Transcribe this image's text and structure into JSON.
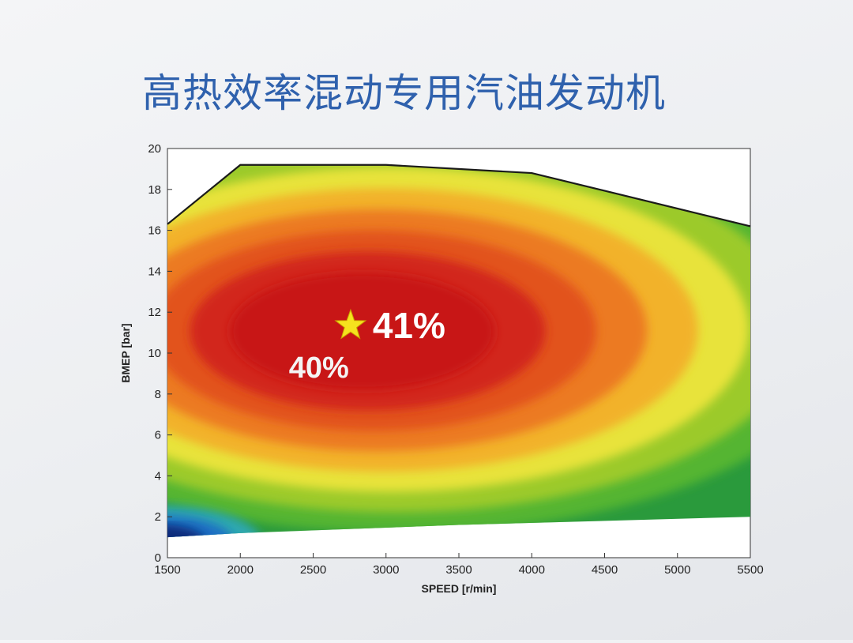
{
  "page": {
    "title": "高热效率混动专用汽油发动机"
  },
  "chart_data": {
    "type": "heatmap",
    "title": "",
    "xlabel": "SPEED [r/min]",
    "ylabel": "BMEP [bar]",
    "xlim": [
      1500,
      5500
    ],
    "ylim": [
      0,
      20
    ],
    "x_ticks": [
      "1500",
      "2000",
      "2500",
      "3000",
      "3500",
      "4000",
      "4500",
      "5000",
      "5500"
    ],
    "y_ticks": [
      "0",
      "2",
      "4",
      "6",
      "8",
      "10",
      "12",
      "14",
      "16",
      "18",
      "20"
    ],
    "grid": false,
    "colormap": [
      "#0b2a7a",
      "#1e6fc4",
      "#2fa8b0",
      "#2a9a3c",
      "#55b532",
      "#9cca2c",
      "#e8e33a",
      "#f2b22a",
      "#ec7a24",
      "#e2521f",
      "#d2271a",
      "#c81814"
    ],
    "upper_boundary": [
      [
        1500,
        16.3
      ],
      [
        2000,
        19.2
      ],
      [
        3000,
        19.2
      ],
      [
        4000,
        18.8
      ],
      [
        5500,
        16.2
      ]
    ],
    "lower_boundary": [
      [
        1500,
        1.0
      ],
      [
        2000,
        1.2
      ],
      [
        3500,
        1.6
      ],
      [
        5500,
        2.0
      ]
    ],
    "peak": {
      "speed": 2800,
      "bmep": 11.5,
      "efficiency_label": "41%"
    },
    "annotations": [
      {
        "text": "41%",
        "speed": 2800,
        "bmep": 11.5
      },
      {
        "text": "40%",
        "speed": 2550,
        "bmep": 9.5
      }
    ]
  }
}
